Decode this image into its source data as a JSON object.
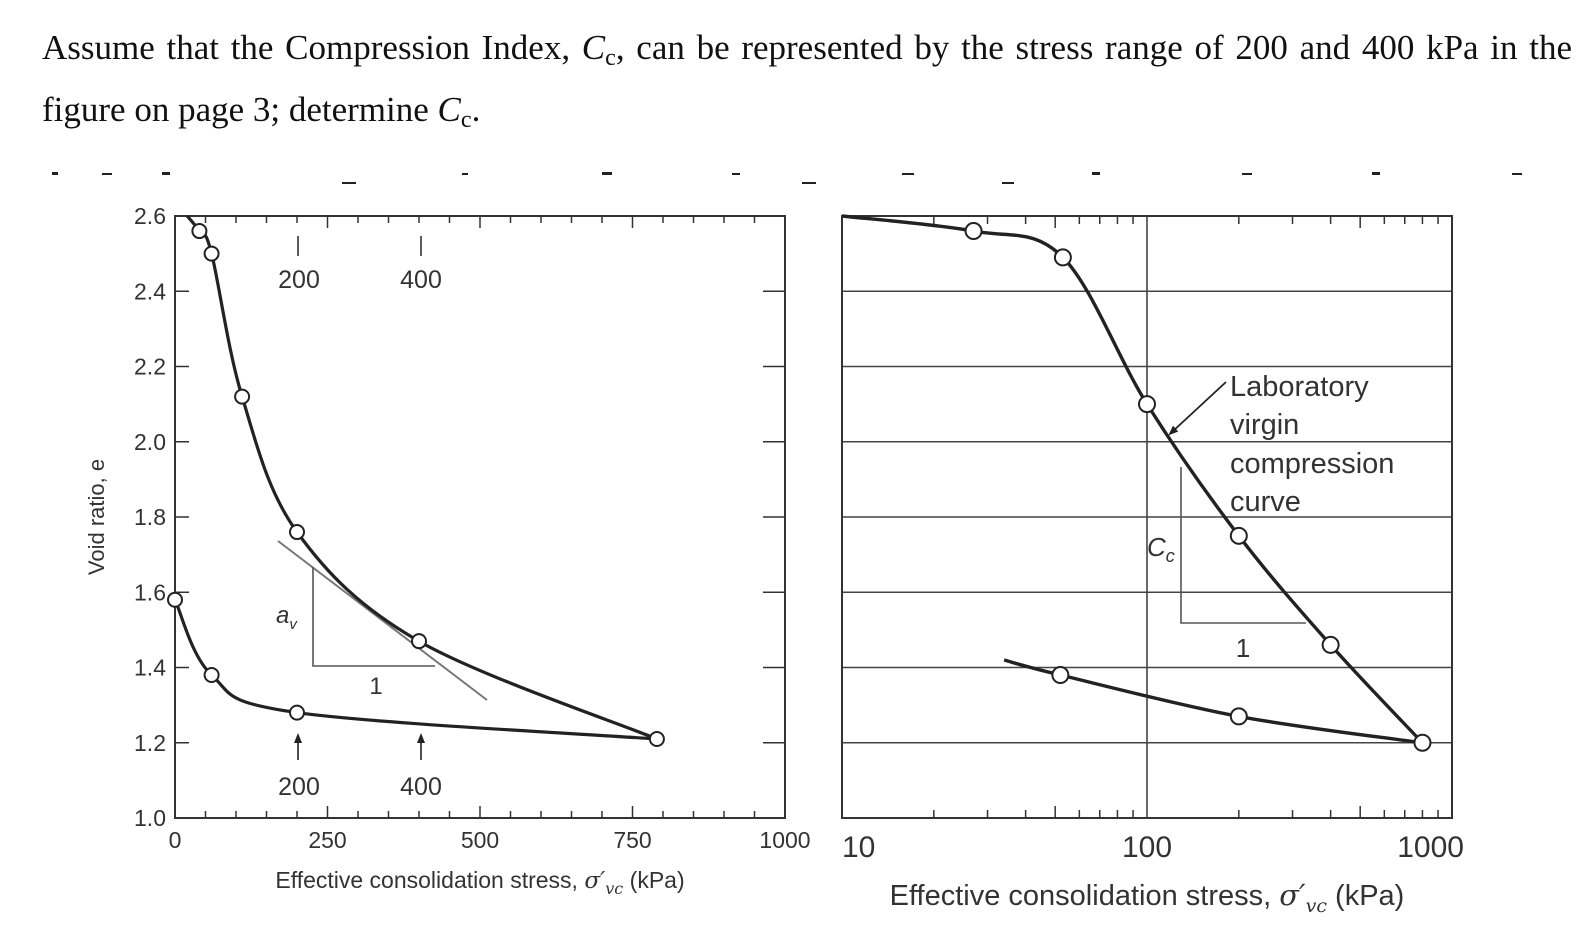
{
  "question": {
    "part1": "Assume that the Compression Index, ",
    "cc_symbol": "C",
    "cc_sub": "c",
    "part2": ", can be represented by the stress range of 200 and 400 kPa in the figure on page 3; determine ",
    "part3": "."
  },
  "colors": {
    "curve": "#222222",
    "axis": "#333333",
    "grid": "#444444",
    "tangent": "#777777",
    "text": "#333333"
  },
  "chart_data": [
    {
      "type": "line",
      "xlabel_text": "Effective consolidation stress, ",
      "xlabel_symbol": "σ′",
      "xlabel_sub": "vc",
      "xlabel_unit": " (kPa)",
      "ylabel": "Void ratio, e",
      "xlim": [
        0,
        1000
      ],
      "ylim": [
        1.0,
        2.6
      ],
      "x_ticks": [
        "0",
        "250",
        "500",
        "750",
        "1000"
      ],
      "y_ticks": [
        "1.0",
        "1.2",
        "1.4",
        "1.6",
        "1.8",
        "2.0",
        "2.2",
        "2.4",
        "2.6"
      ],
      "grid": false,
      "series": [
        {
          "points": [
            [
              20,
              2.6
            ],
            [
              40,
              2.56
            ],
            [
              60,
              2.5
            ],
            [
              110,
              2.12
            ],
            [
              200,
              1.76
            ],
            [
              400,
              1.47
            ],
            [
              790,
              1.21
            ]
          ]
        },
        {
          "points": [
            [
              0,
              1.58
            ],
            [
              60,
              1.38
            ],
            [
              200,
              1.28
            ],
            [
              790,
              1.21
            ]
          ]
        }
      ],
      "annotations": {
        "top_labels": [
          "200",
          "400"
        ],
        "bottom_labels": [
          "200",
          "400"
        ],
        "slope_label": "a",
        "slope_sub": "v",
        "run_label": "1"
      }
    },
    {
      "type": "line",
      "xscale": "log",
      "xlabel_text": "Effective consolidation stress, ",
      "xlabel_symbol": "σ′",
      "xlabel_sub": "vc",
      "xlabel_unit": " (kPa)",
      "xlim": [
        10,
        1000
      ],
      "ylim": [
        1.0,
        2.6
      ],
      "x_ticks": [
        "10",
        "100",
        "1000"
      ],
      "grid": true,
      "series": [
        {
          "points": [
            [
              10,
              2.6
            ],
            [
              27,
              2.56
            ],
            [
              53,
              2.49
            ],
            [
              100,
              2.1
            ],
            [
              200,
              1.75
            ],
            [
              400,
              1.46
            ],
            [
              800,
              1.2
            ]
          ]
        },
        {
          "points": [
            [
              34,
              1.42
            ],
            [
              52,
              1.38
            ],
            [
              200,
              1.27
            ],
            [
              800,
              1.2
            ]
          ]
        }
      ],
      "annotations": {
        "curve_label": [
          "Laboratory",
          "virgin",
          "compression",
          "curve"
        ],
        "slope_label": "C",
        "slope_sub": "c",
        "run_label": "1"
      }
    }
  ]
}
